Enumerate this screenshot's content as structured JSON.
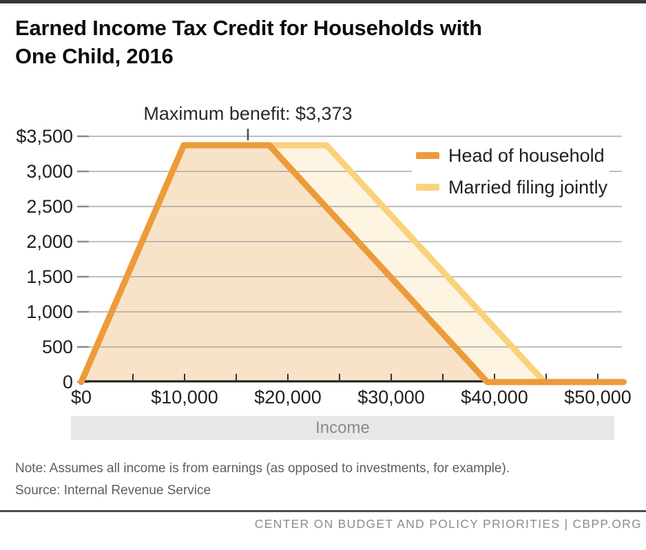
{
  "page": {
    "title": "Earned Income Tax Credit for Households with One Child, 2016",
    "title_line1": "Earned Income Tax Credit for Households with",
    "title_line2": "One Child, 2016",
    "note": "Note: Assumes all income is from earnings (as opposed to investments, for example).",
    "source": "Source: Internal Revenue Service",
    "footer": "CENTER ON BUDGET AND POLICY PRIORITIES | CBPP.ORG"
  },
  "legend": [
    {
      "label": "Head of household",
      "color": "#EC9B3B"
    },
    {
      "label": "Married filing jointly",
      "color": "#FAD27C"
    }
  ],
  "chart_data": {
    "type": "area",
    "title": "Earned Income Tax Credit for Households with One Child, 2016",
    "xlabel": "Income",
    "ylabel": "",
    "xlim": [
      0,
      52500
    ],
    "ylim": [
      0,
      3500
    ],
    "grid": "horizontal",
    "legend_position": "top-right",
    "annotation": {
      "text": "Maximum benefit: $3,373",
      "anchor_x": 16133,
      "anchor_y": 3373
    },
    "x_axis": {
      "minor_step": 5000,
      "ticks": [
        {
          "label": "$0",
          "value": 0
        },
        {
          "label": "$10,000",
          "value": 10000
        },
        {
          "label": "$20,000",
          "value": 20000
        },
        {
          "label": "$30,000",
          "value": 30000
        },
        {
          "label": "$40,000",
          "value": 40000
        },
        {
          "label": "$50,000",
          "value": 50000
        }
      ]
    },
    "y_axis": {
      "ticks": [
        {
          "label": "$3,500",
          "value": 3500
        },
        {
          "label": "3,000",
          "value": 3000
        },
        {
          "label": "2,500",
          "value": 2500
        },
        {
          "label": "2,000",
          "value": 2000
        },
        {
          "label": "1,500",
          "value": 1500
        },
        {
          "label": "1,000",
          "value": 1000
        },
        {
          "label": "500",
          "value": 500
        },
        {
          "label": "0",
          "value": 0
        }
      ]
    },
    "series": [
      {
        "name": "Married filing jointly",
        "line_color": "#FAD27C",
        "fill_color": "#FDF5E2",
        "points": [
          [
            0,
            0
          ],
          [
            9920,
            3373
          ],
          [
            23740,
            3373
          ],
          [
            44846,
            0
          ],
          [
            52500,
            0
          ]
        ]
      },
      {
        "name": "Head of household",
        "line_color": "#EC9B3B",
        "fill_color": "#F8E3C8",
        "points": [
          [
            0,
            0
          ],
          [
            9920,
            3373
          ],
          [
            18190,
            3373
          ],
          [
            39296,
            0
          ],
          [
            52500,
            0
          ]
        ]
      }
    ]
  }
}
